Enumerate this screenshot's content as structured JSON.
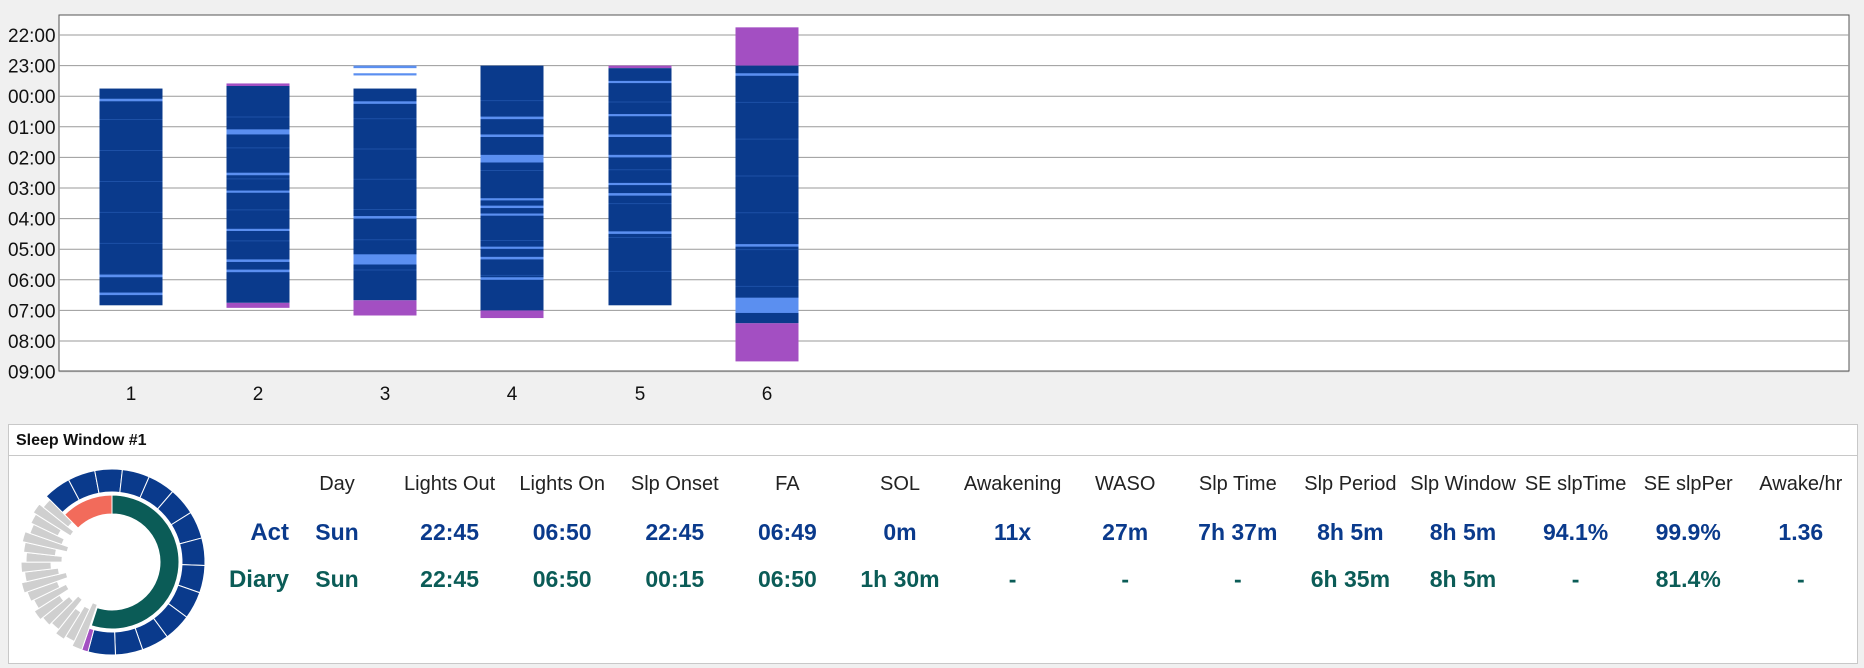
{
  "chart_data": {
    "type": "bar",
    "y_axis": {
      "tick_labels": [
        "22:00",
        "23:00",
        "00:00",
        "01:00",
        "02:00",
        "03:00",
        "04:00",
        "05:00",
        "06:00",
        "07:00",
        "08:00",
        "09:00"
      ],
      "ylim": [
        "22:00",
        "09:00"
      ],
      "inverted": true
    },
    "x_axis": {
      "categories": [
        "1",
        "2",
        "3",
        "4",
        "5",
        "6"
      ]
    },
    "grid": true,
    "colors": {
      "sleep": "#0a3a8c",
      "wake": "#5b8ff0",
      "diary_only": "#a34fc2",
      "faint_line": "#2a5fb8"
    },
    "nights": [
      {
        "night": "1",
        "sleep_start": "23:45",
        "sleep_end": "06:50",
        "diary_before": null,
        "diary_after": null,
        "wake_bands": [
          [
            "00:05",
            "00:10"
          ],
          [
            "05:50",
            "05:55"
          ],
          [
            "06:25",
            "06:30"
          ]
        ]
      },
      {
        "night": "2",
        "sleep_start": "23:40",
        "sleep_end": "06:45",
        "diary_before": [
          "23:35",
          "23:40"
        ],
        "diary_after": [
          "06:45",
          "06:55"
        ],
        "wake_bands": [
          [
            "01:05",
            "01:15"
          ],
          [
            "02:30",
            "02:35"
          ],
          [
            "03:05",
            "03:08"
          ],
          [
            "04:20",
            "04:23"
          ],
          [
            "05:20",
            "05:25"
          ],
          [
            "05:40",
            "05:45"
          ]
        ]
      },
      {
        "night": "3",
        "sleep_start": "23:45",
        "sleep_end": "06:40",
        "diary_before": null,
        "diary_after": [
          "06:40",
          "07:10"
        ],
        "wake_bands": [
          [
            "23:00",
            "23:05"
          ],
          [
            "23:15",
            "23:18"
          ],
          [
            "00:10",
            "00:15"
          ],
          [
            "03:55",
            "04:00"
          ],
          [
            "05:10",
            "05:30"
          ]
        ]
      },
      {
        "night": "4",
        "sleep_start": "23:00",
        "sleep_end": "07:00",
        "diary_before": null,
        "diary_after": [
          "07:00",
          "07:15"
        ],
        "wake_bands": [
          [
            "00:40",
            "00:45"
          ],
          [
            "01:15",
            "01:20"
          ],
          [
            "01:55",
            "02:10"
          ],
          [
            "03:20",
            "03:23"
          ],
          [
            "03:35",
            "03:38"
          ],
          [
            "03:50",
            "03:53"
          ],
          [
            "04:55",
            "04:58"
          ],
          [
            "05:15",
            "05:20"
          ],
          [
            "05:55",
            "06:00"
          ]
        ]
      },
      {
        "night": "5",
        "sleep_start": "23:05",
        "sleep_end": "06:50",
        "diary_before": [
          "23:00",
          "23:05"
        ],
        "diary_after": null,
        "wake_bands": [
          [
            "23:30",
            "23:33"
          ],
          [
            "00:35",
            "00:38"
          ],
          [
            "01:15",
            "01:20"
          ],
          [
            "01:55",
            "02:00"
          ],
          [
            "02:50",
            "02:53"
          ],
          [
            "03:10",
            "03:15"
          ],
          [
            "04:25",
            "04:30"
          ]
        ]
      },
      {
        "night": "6",
        "sleep_start": "23:00",
        "sleep_end": "07:25",
        "diary_before": [
          "21:45",
          "23:00"
        ],
        "diary_after": [
          "07:25",
          "08:40"
        ],
        "wake_bands": [
          [
            "23:15",
            "23:20"
          ],
          [
            "04:50",
            "04:55"
          ],
          [
            "06:35",
            "07:05"
          ]
        ]
      }
    ]
  },
  "panel": {
    "title": "Sleep Window #1",
    "headers": [
      "Day",
      "Lights Out",
      "Lights On",
      "Slp Onset",
      "FA",
      "SOL",
      "Awakening",
      "WASO",
      "Slp Time",
      "Slp Period",
      "Slp Window",
      "SE slpTime",
      "SE slpPer",
      "Awake/hr"
    ],
    "rows": {
      "act": {
        "label": "Act",
        "values": [
          "Sun",
          "22:45",
          "06:50",
          "22:45",
          "06:49",
          "0m",
          "11x",
          "27m",
          "7h 37m",
          "8h 5m",
          "8h 5m",
          "94.1%",
          "99.9%",
          "1.36"
        ]
      },
      "diary": {
        "label": "Diary",
        "values": [
          "Sun",
          "22:45",
          "06:50",
          "00:15",
          "06:50",
          "1h 30m",
          "-",
          "-",
          "-",
          "6h 35m",
          "8h 5m",
          "-",
          "81.4%",
          "-"
        ]
      }
    },
    "donut": {
      "colors": {
        "sleep": "#0a3a8c",
        "awake": "#cfcfcf",
        "latency": "#f26b5b",
        "inner_sleep": "#0b5c57",
        "diary": "#a34fc2"
      }
    }
  }
}
